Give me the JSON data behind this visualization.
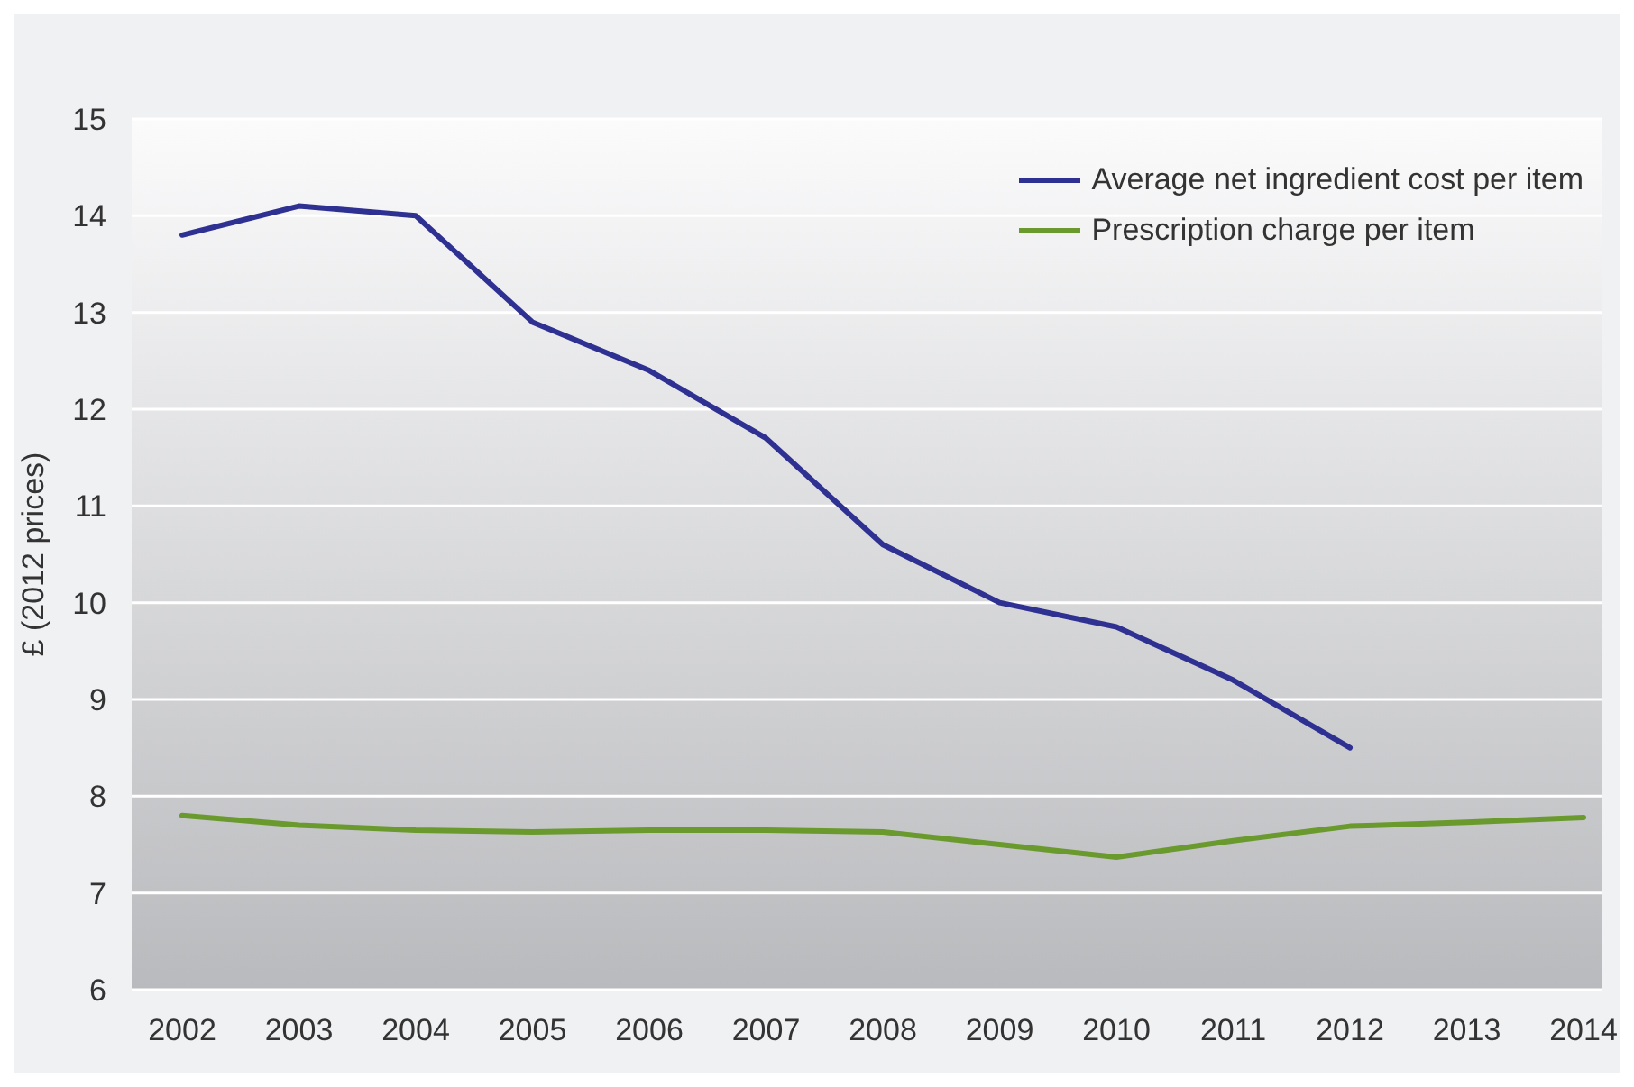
{
  "chart_data": {
    "type": "line",
    "ylabel": "£ (2012 prices)",
    "categories": [
      "2002",
      "2003",
      "2004",
      "2005",
      "2006",
      "2007",
      "2008",
      "2009",
      "2010",
      "2011",
      "2012",
      "2013",
      "2014"
    ],
    "series": [
      {
        "name": "Average net ingredient cost per item",
        "color": "#2e3192",
        "values": [
          13.8,
          14.1,
          14.0,
          12.9,
          12.4,
          11.7,
          10.6,
          10.0,
          9.75,
          9.2,
          8.5,
          null,
          null
        ]
      },
      {
        "name": "Prescription charge per item",
        "color": "#6a9a2e",
        "values": [
          7.8,
          7.7,
          7.65,
          7.63,
          7.65,
          7.65,
          7.63,
          7.5,
          7.37,
          7.54,
          7.69,
          7.73,
          7.78
        ]
      }
    ],
    "ylim": [
      6,
      15
    ],
    "yticks": [
      6,
      7,
      8,
      9,
      10,
      11,
      12,
      13,
      14,
      15
    ],
    "grid": "y",
    "legend": "top right",
    "marker": "none",
    "line_style": "solid"
  }
}
